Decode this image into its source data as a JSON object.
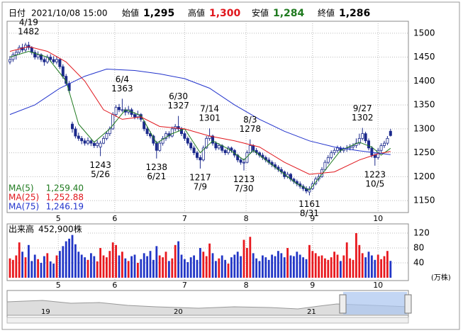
{
  "header": {
    "date_label": "日付",
    "datetime": "2021/10/08 15:00",
    "open_label": "始値",
    "open": "1,295",
    "high_label": "高値",
    "high": "1,300",
    "low_label": "安値",
    "low": "1,284",
    "close_label": "終値",
    "close": "1,286"
  },
  "chart_data": [
    {
      "type": "candlestick",
      "ylim": [
        1125,
        1525
      ],
      "yticks": [
        1150,
        1200,
        1250,
        1300,
        1350,
        1400,
        1450,
        1500
      ],
      "grid": true,
      "up_color": "#ffffff",
      "down_color": "#1c2a8c",
      "edge_color": "#1c2a8c",
      "xticks": [
        {
          "value": 15.5,
          "label": "5"
        },
        {
          "value": 33.6,
          "label": "6"
        },
        {
          "value": 56,
          "label": "7"
        },
        {
          "value": 75.7,
          "label": "8"
        },
        {
          "value": 97,
          "label": "9"
        },
        {
          "value": 118,
          "label": "10"
        }
      ],
      "candles": [
        [
          1440,
          1452,
          1435,
          1445
        ],
        [
          1445,
          1460,
          1440,
          1455
        ],
        [
          1455,
          1465,
          1445,
          1460
        ],
        [
          1460,
          1475,
          1455,
          1470
        ],
        [
          1470,
          1478,
          1460,
          1465
        ],
        [
          1465,
          1480,
          1460,
          1475
        ],
        [
          1475,
          1482,
          1465,
          1470
        ],
        [
          1470,
          1473,
          1455,
          1460
        ],
        [
          1460,
          1465,
          1445,
          1450
        ],
        [
          1450,
          1462,
          1445,
          1455
        ],
        [
          1455,
          1458,
          1440,
          1445
        ],
        [
          1445,
          1450,
          1432,
          1440
        ],
        [
          1440,
          1455,
          1436,
          1450
        ],
        [
          1450,
          1456,
          1440,
          1445
        ],
        [
          1445,
          1452,
          1436,
          1440
        ],
        [
          1440,
          1452,
          1435,
          1445
        ],
        [
          1445,
          1448,
          1425,
          1430
        ],
        [
          1430,
          1435,
          1405,
          1410
        ],
        [
          1410,
          1415,
          1390,
          1395
        ],
        [
          1395,
          1400,
          1375,
          1380
        ],
        [
          1310,
          1315,
          1292,
          1300
        ],
        [
          1300,
          1305,
          1280,
          1285
        ],
        [
          1285,
          1292,
          1275,
          1280
        ],
        [
          1280,
          1285,
          1268,
          1275
        ],
        [
          1275,
          1280,
          1265,
          1270
        ],
        [
          1270,
          1282,
          1266,
          1275
        ],
        [
          1275,
          1278,
          1264,
          1270
        ],
        [
          1270,
          1274,
          1260,
          1265
        ],
        [
          1265,
          1276,
          1260,
          1270
        ],
        [
          1262,
          1275,
          1243,
          1270
        ],
        [
          1270,
          1285,
          1268,
          1280
        ],
        [
          1280,
          1295,
          1276,
          1290
        ],
        [
          1290,
          1305,
          1285,
          1300
        ],
        [
          1300,
          1335,
          1298,
          1330
        ],
        [
          1330,
          1350,
          1325,
          1345
        ],
        [
          1345,
          1352,
          1335,
          1340
        ],
        [
          1340,
          1363,
          1335,
          1340
        ],
        [
          1340,
          1345,
          1328,
          1335
        ],
        [
          1335,
          1348,
          1330,
          1340
        ],
        [
          1340,
          1344,
          1325,
          1330
        ],
        [
          1330,
          1335,
          1320,
          1325
        ],
        [
          1325,
          1338,
          1320,
          1330
        ],
        [
          1330,
          1333,
          1315,
          1320
        ],
        [
          1315,
          1318,
          1295,
          1300
        ],
        [
          1300,
          1305,
          1285,
          1290
        ],
        [
          1290,
          1295,
          1280,
          1285
        ],
        [
          1285,
          1288,
          1265,
          1270
        ],
        [
          1270,
          1275,
          1238,
          1255
        ],
        [
          1255,
          1275,
          1252,
          1270
        ],
        [
          1270,
          1285,
          1265,
          1280
        ],
        [
          1280,
          1295,
          1275,
          1290
        ],
        [
          1290,
          1295,
          1280,
          1285
        ],
        [
          1285,
          1305,
          1282,
          1300
        ],
        [
          1300,
          1310,
          1295,
          1305
        ],
        [
          1305,
          1327,
          1295,
          1300
        ],
        [
          1300,
          1304,
          1285,
          1290
        ],
        [
          1290,
          1295,
          1275,
          1280
        ],
        [
          1280,
          1284,
          1265,
          1270
        ],
        [
          1270,
          1274,
          1255,
          1260
        ],
        [
          1260,
          1265,
          1245,
          1250
        ],
        [
          1250,
          1254,
          1235,
          1240
        ],
        [
          1240,
          1245,
          1217,
          1235
        ],
        [
          1235,
          1265,
          1232,
          1260
        ],
        [
          1260,
          1285,
          1258,
          1280
        ],
        [
          1280,
          1301,
          1275,
          1285
        ],
        [
          1285,
          1288,
          1265,
          1270
        ],
        [
          1270,
          1274,
          1255,
          1260
        ],
        [
          1260,
          1270,
          1256,
          1265
        ],
        [
          1265,
          1268,
          1250,
          1255
        ],
        [
          1255,
          1258,
          1245,
          1250
        ],
        [
          1250,
          1264,
          1246,
          1260
        ],
        [
          1260,
          1263,
          1250,
          1255
        ],
        [
          1255,
          1258,
          1240,
          1245
        ],
        [
          1245,
          1248,
          1230,
          1235
        ],
        [
          1235,
          1240,
          1225,
          1230
        ],
        [
          1230,
          1238,
          1213,
          1230
        ],
        [
          1230,
          1255,
          1228,
          1250
        ],
        [
          1250,
          1278,
          1248,
          1265
        ],
        [
          1265,
          1268,
          1250,
          1255
        ],
        [
          1255,
          1260,
          1245,
          1250
        ],
        [
          1250,
          1253,
          1240,
          1245
        ],
        [
          1245,
          1250,
          1235,
          1240
        ],
        [
          1240,
          1244,
          1230,
          1235
        ],
        [
          1235,
          1240,
          1225,
          1230
        ],
        [
          1230,
          1234,
          1220,
          1225
        ],
        [
          1225,
          1230,
          1215,
          1220
        ],
        [
          1220,
          1224,
          1210,
          1215
        ],
        [
          1215,
          1220,
          1205,
          1210
        ],
        [
          1210,
          1213,
          1195,
          1200
        ],
        [
          1200,
          1210,
          1196,
          1205
        ],
        [
          1205,
          1208,
          1190,
          1195
        ],
        [
          1195,
          1198,
          1185,
          1190
        ],
        [
          1190,
          1194,
          1180,
          1185
        ],
        [
          1185,
          1190,
          1175,
          1180
        ],
        [
          1180,
          1184,
          1170,
          1175
        ],
        [
          1175,
          1180,
          1165,
          1170
        ],
        [
          1168,
          1180,
          1161,
          1175
        ],
        [
          1175,
          1190,
          1172,
          1185
        ],
        [
          1185,
          1200,
          1182,
          1195
        ],
        [
          1195,
          1205,
          1190,
          1200
        ],
        [
          1200,
          1220,
          1198,
          1215
        ],
        [
          1215,
          1235,
          1212,
          1230
        ],
        [
          1230,
          1245,
          1226,
          1240
        ],
        [
          1240,
          1255,
          1236,
          1250
        ],
        [
          1250,
          1260,
          1245,
          1255
        ],
        [
          1255,
          1265,
          1250,
          1260
        ],
        [
          1260,
          1264,
          1250,
          1255
        ],
        [
          1255,
          1262,
          1250,
          1258
        ],
        [
          1258,
          1266,
          1252,
          1260
        ],
        [
          1260,
          1268,
          1255,
          1262
        ],
        [
          1262,
          1270,
          1256,
          1265
        ],
        [
          1265,
          1280,
          1260,
          1270
        ],
        [
          1270,
          1290,
          1266,
          1280
        ],
        [
          1280,
          1302,
          1276,
          1290
        ],
        [
          1290,
          1294,
          1270,
          1275
        ],
        [
          1275,
          1280,
          1255,
          1260
        ],
        [
          1260,
          1264,
          1240,
          1245
        ],
        [
          1245,
          1250,
          1223,
          1240
        ],
        [
          1240,
          1260,
          1236,
          1255
        ],
        [
          1255,
          1270,
          1250,
          1265
        ],
        [
          1265,
          1275,
          1260,
          1270
        ],
        [
          1270,
          1285,
          1266,
          1280
        ],
        [
          1295,
          1300,
          1284,
          1286
        ]
      ],
      "series": [
        {
          "name": "MA(5)",
          "color": "#1f7a1f",
          "latest": {
            "value": 1259.4,
            "label": "1,259.40"
          },
          "x": [
            0,
            6,
            12,
            18,
            22,
            27,
            32,
            37,
            42,
            47,
            52,
            56,
            61,
            65,
            70,
            75,
            78,
            85,
            92,
            96,
            100,
            106,
            112,
            116,
            119,
            122
          ],
          "values": [
            1450,
            1462,
            1450,
            1400,
            1310,
            1272,
            1300,
            1340,
            1328,
            1270,
            1290,
            1300,
            1250,
            1275,
            1258,
            1235,
            1255,
            1220,
            1185,
            1172,
            1205,
            1255,
            1272,
            1262,
            1245,
            1259.4
          ]
        },
        {
          "name": "MA(25)",
          "color": "#e0161c",
          "latest": {
            "value": 1252.88,
            "label": "1,252.88"
          },
          "x": [
            0,
            6,
            12,
            18,
            24,
            30,
            36,
            42,
            48,
            56,
            64,
            72,
            80,
            88,
            96,
            104,
            112,
            118,
            122
          ],
          "values": [
            1462,
            1472,
            1462,
            1440,
            1400,
            1340,
            1320,
            1325,
            1305,
            1300,
            1285,
            1275,
            1262,
            1230,
            1205,
            1210,
            1235,
            1248,
            1252.88
          ]
        },
        {
          "name": "MA(75)",
          "color": "#2233cc",
          "latest": {
            "value": 1246.19,
            "label": "1,246.19"
          },
          "x": [
            0,
            8,
            16,
            24,
            31,
            40,
            48,
            56,
            64,
            72,
            80,
            88,
            96,
            104,
            112,
            122
          ],
          "values": [
            1330,
            1350,
            1385,
            1410,
            1425,
            1422,
            1415,
            1405,
            1385,
            1350,
            1320,
            1295,
            1275,
            1262,
            1254,
            1246.19
          ]
        }
      ],
      "annotations": [
        {
          "x": 6,
          "date": "4/19",
          "price": 1482,
          "kind": "high"
        },
        {
          "x": 29,
          "date": "5/26",
          "price": 1243,
          "kind": "low"
        },
        {
          "x": 36,
          "date": "6/4",
          "price": 1363,
          "kind": "high"
        },
        {
          "x": 47,
          "date": "6/21",
          "price": 1238,
          "kind": "low"
        },
        {
          "x": 54,
          "date": "6/30",
          "price": 1327,
          "kind": "high"
        },
        {
          "x": 61,
          "date": "7/9",
          "price": 1217,
          "kind": "low"
        },
        {
          "x": 64,
          "date": "7/14",
          "price": 1301,
          "kind": "high"
        },
        {
          "x": 75,
          "date": "7/30",
          "price": 1213,
          "kind": "low"
        },
        {
          "x": 77,
          "date": "8/3",
          "price": 1278,
          "kind": "high"
        },
        {
          "x": 96,
          "date": "8/31",
          "price": 1161,
          "kind": "low"
        },
        {
          "x": 113,
          "date": "9/27",
          "price": 1302,
          "kind": "high"
        },
        {
          "x": 117,
          "date": "10/5",
          "price": 1223,
          "kind": "low"
        }
      ]
    },
    {
      "type": "bar",
      "title": "出来高",
      "latest": {
        "value": 452900,
        "label": "452,900株"
      },
      "unit": "(万株)",
      "ylim": [
        0,
        141
      ],
      "yticks": [
        40,
        80,
        120
      ],
      "grid": true,
      "up_color": "#e8191f",
      "down_color": "#2236c6",
      "values": [
        52,
        48,
        60,
        95,
        70,
        55,
        88,
        45,
        62,
        50,
        40,
        58,
        66,
        44,
        38,
        60,
        72,
        85,
        98,
        105,
        115,
        90,
        70,
        62,
        55,
        48,
        66,
        58,
        44,
        80,
        60,
        55,
        72,
        95,
        88,
        60,
        70,
        52,
        45,
        58,
        62,
        40,
        50,
        66,
        58,
        72,
        48,
        85,
        60,
        55,
        70,
        45,
        52,
        88,
        98,
        62,
        50,
        42,
        55,
        60,
        48,
        80,
        70,
        58,
        92,
        66,
        45,
        52,
        60,
        48,
        38,
        55,
        62,
        70,
        58,
        102,
        80,
        110,
        66,
        52,
        45,
        60,
        55,
        48,
        62,
        58,
        72,
        66,
        55,
        80,
        60,
        58,
        70,
        62,
        55,
        50,
        88,
        72,
        66,
        58,
        60,
        52,
        48,
        55,
        70,
        62,
        45,
        60,
        95,
        52,
        48,
        120,
        88,
        66,
        55,
        70,
        60,
        48,
        62,
        50,
        58,
        72,
        45.29
      ]
    }
  ],
  "navigator": {
    "labels": [
      "19",
      "20",
      "21"
    ]
  }
}
